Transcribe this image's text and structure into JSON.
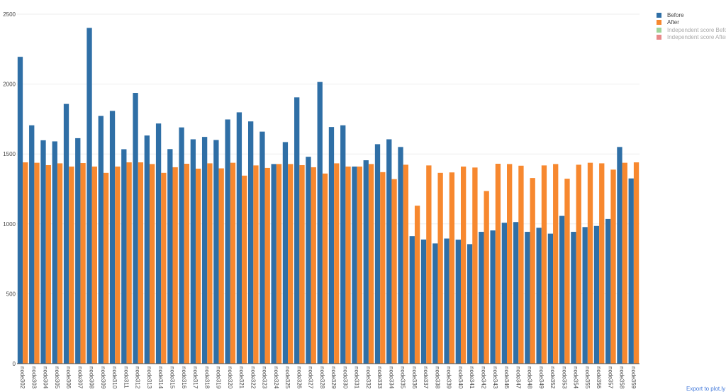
{
  "chart_data": {
    "type": "bar",
    "categories": [
      "node302",
      "node303",
      "node304",
      "node305",
      "node306",
      "node307",
      "node308",
      "node309",
      "node310",
      "node311",
      "node312",
      "node313",
      "node314",
      "node315",
      "node316",
      "node317",
      "node318",
      "node319",
      "node320",
      "node321",
      "node322",
      "node323",
      "node324",
      "node325",
      "node326",
      "node327",
      "node328",
      "node329",
      "node330",
      "node331",
      "node332",
      "node333",
      "node334",
      "node335",
      "node336",
      "node337",
      "node338",
      "node339",
      "node340",
      "node341",
      "node342",
      "node343",
      "node346",
      "node347",
      "node348",
      "node349",
      "node352",
      "node353",
      "node354",
      "node355",
      "node356",
      "node357",
      "node358",
      "node359"
    ],
    "series": [
      {
        "name": "Before",
        "color": "#2f6fa6",
        "values": [
          2195,
          1705,
          1598,
          1590,
          1858,
          1613,
          2402,
          1772,
          1808,
          1534,
          1937,
          1632,
          1718,
          1535,
          1690,
          1605,
          1622,
          1600,
          1747,
          1798,
          1733,
          1660,
          1428,
          1585,
          1905,
          1480,
          2015,
          1693,
          1705,
          1410,
          1455,
          1570,
          1605,
          1550,
          912,
          888,
          860,
          895,
          887,
          855,
          943,
          953,
          1008,
          1013,
          943,
          972,
          930,
          1057,
          943,
          977,
          985,
          1035,
          1550,
          1325
        ]
      },
      {
        "name": "After",
        "color": "#f7882f",
        "values": [
          1440,
          1437,
          1420,
          1433,
          1410,
          1435,
          1410,
          1365,
          1410,
          1440,
          1440,
          1428,
          1365,
          1405,
          1430,
          1395,
          1433,
          1397,
          1437,
          1345,
          1418,
          1400,
          1428,
          1428,
          1420,
          1405,
          1360,
          1433,
          1410,
          1410,
          1428,
          1370,
          1320,
          1423,
          1130,
          1418,
          1365,
          1368,
          1410,
          1403,
          1235,
          1430,
          1428,
          1416,
          1328,
          1418,
          1428,
          1323,
          1423,
          1437,
          1433,
          1388,
          1437,
          1440
        ]
      }
    ],
    "legend": [
      {
        "label": "Before",
        "color": "#2f6fa6",
        "muted": false
      },
      {
        "label": "After",
        "color": "#f7882f",
        "muted": false
      },
      {
        "label": "Independent score Before",
        "color": "#9fd49a",
        "muted": true
      },
      {
        "label": "Independent score After",
        "color": "#e88a8a",
        "muted": true
      }
    ],
    "yticks": [
      0,
      500,
      1000,
      1500,
      2000,
      2500
    ],
    "ylim": [
      0,
      2500
    ],
    "grid": true,
    "legend_position": "top-right",
    "title": "",
    "xlabel": "",
    "ylabel": ""
  },
  "footer": {
    "export_label": "Export to plot.ly »"
  }
}
